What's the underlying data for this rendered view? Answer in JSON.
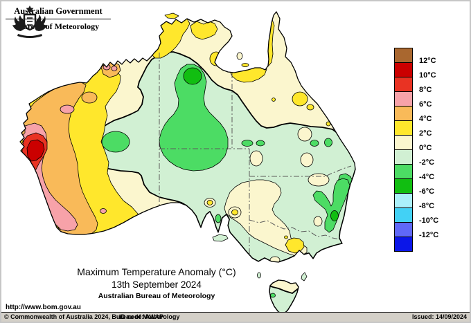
{
  "header": {
    "government": "Australian Government",
    "bureau": "Bureau of Meteorology",
    "crest_icon": "australian-coat-of-arms"
  },
  "title": {
    "heading": "Maximum Temperature Anomaly (°C)",
    "date": "13th September 2024",
    "org": "Australian Bureau of Meteorology"
  },
  "legend": {
    "unit": "°C",
    "labels": [
      "12°C",
      "10°C",
      "8°C",
      "6°C",
      "4°C",
      "2°C",
      "0°C",
      "-2°C",
      "-4°C",
      "-6°C",
      "-8°C",
      "-10°C",
      "-12°C"
    ],
    "colors": [
      "#A9672F",
      "#CB0000",
      "#E93323",
      "#F7A2A9",
      "#F9BA59",
      "#FFE72C",
      "#FBF6CE",
      "#D1F0D3",
      "#4CDC64",
      "#11BE11",
      "#ABF0FB",
      "#42D1F5",
      "#5F68F8",
      "#0B16E8"
    ]
  },
  "map": {
    "land_color": "#FBF6CE",
    "ocean_color": "#FFFFFF",
    "contour_color": "#000000"
  },
  "footer": {
    "url": "http://www.bom.gov.au",
    "copyright": "© Commonwealth of Australia 2024, Bureau of Meteorology",
    "id_code": "ID code: AWAP",
    "issued": "Issued: 14/09/2024"
  }
}
